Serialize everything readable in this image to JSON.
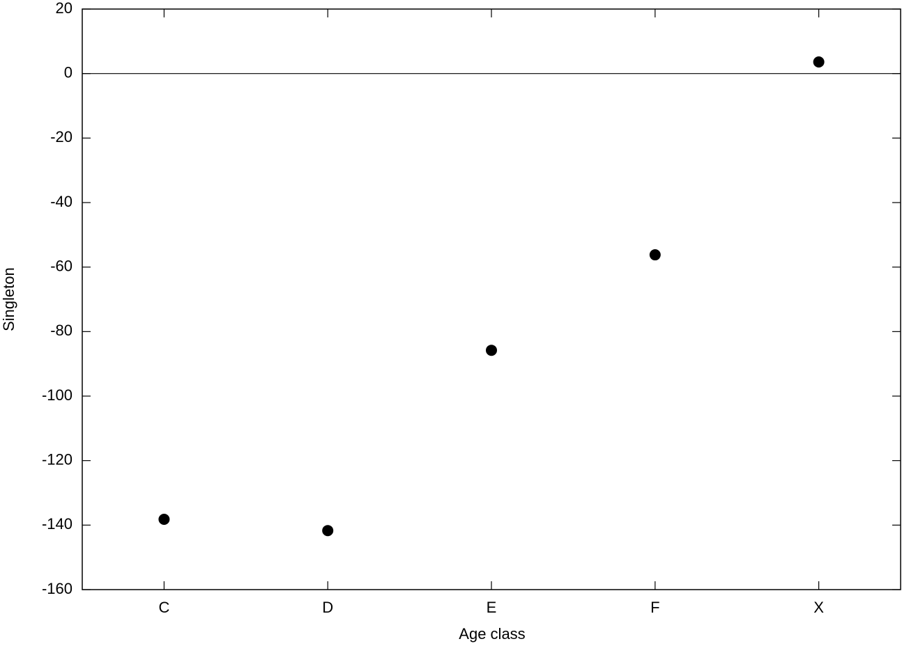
{
  "chart_data": {
    "type": "scatter",
    "x_label": "Age class",
    "y_label": "Singleton",
    "categories": [
      "C",
      "D",
      "E",
      "F",
      "X"
    ],
    "values": [
      -138.2,
      -141.7,
      -85.8,
      -56.2,
      3.6
    ],
    "color": "#000000",
    "ylim": [
      -160,
      20
    ],
    "yticks": [
      -160,
      -140,
      -120,
      -100,
      -80,
      -60,
      -40,
      -20,
      0,
      20
    ],
    "zero_line": true
  }
}
